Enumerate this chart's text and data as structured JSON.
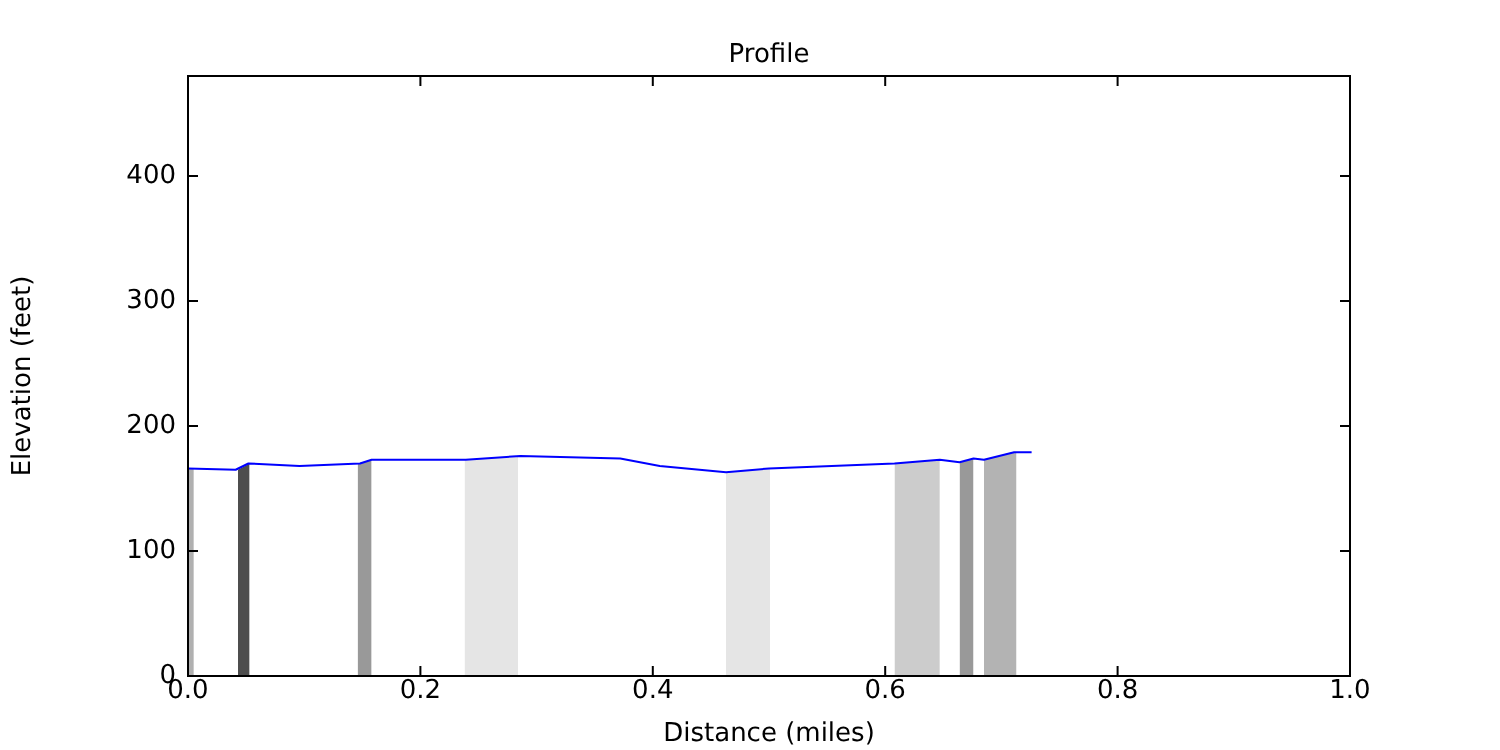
{
  "chart_data": {
    "type": "line",
    "title": "Profile",
    "xlabel": "Distance (miles)",
    "ylabel": "Elevation (feet)",
    "xlim": [
      0,
      1.0
    ],
    "xticks": [
      {
        "value": 0,
        "label": "0.0"
      },
      0.2,
      0.4,
      0.6,
      0.8,
      {
        "value": 1,
        "label": "1.0"
      }
    ],
    "ylim": [
      0,
      480
    ],
    "yticks": [
      0,
      100,
      200,
      300,
      400
    ],
    "grid": false,
    "legend": false,
    "marker": "none",
    "line_style": "solid",
    "series": [
      {
        "type": "area",
        "color": "#b0b0b0",
        "x": [
          0.0,
          0.005
        ],
        "values": [
          166,
          166
        ]
      },
      {
        "type": "area",
        "color": "#4d4d4d",
        "x": [
          0.043,
          0.053
        ],
        "values": [
          165,
          170
        ]
      },
      {
        "type": "area",
        "color": "#999999",
        "x": [
          0.146,
          0.158
        ],
        "values": [
          170,
          173
        ]
      },
      {
        "type": "area",
        "color": "#e5e5e5",
        "x": [
          0.238,
          0.284
        ],
        "values": [
          173,
          176
        ]
      },
      {
        "type": "area",
        "color": "#e5e5e5",
        "x": [
          0.463,
          0.501
        ],
        "values": [
          163,
          166
        ]
      },
      {
        "type": "area",
        "color": "#cccccc",
        "x": [
          0.608,
          0.647
        ],
        "values": [
          170,
          173
        ]
      },
      {
        "type": "area",
        "color": "#999999",
        "x": [
          0.664,
          0.676
        ],
        "values": [
          171,
          174
        ]
      },
      {
        "type": "area",
        "color": "#b3b3b3",
        "x": [
          0.685,
          0.713
        ],
        "values": [
          173,
          179
        ]
      },
      {
        "type": "line",
        "color": "#0000ff",
        "x": [
          0,
          0.041,
          0.052,
          0.096,
          0.148,
          0.158,
          0.239,
          0.286,
          0.372,
          0.406,
          0.463,
          0.5,
          0.608,
          0.647,
          0.664,
          0.676,
          0.685,
          0.711,
          0.726
        ],
        "values": [
          166,
          165,
          170,
          168,
          170,
          173,
          173,
          176,
          174,
          168,
          163,
          166,
          170,
          173,
          171,
          174,
          173,
          179,
          179
        ]
      }
    ]
  }
}
